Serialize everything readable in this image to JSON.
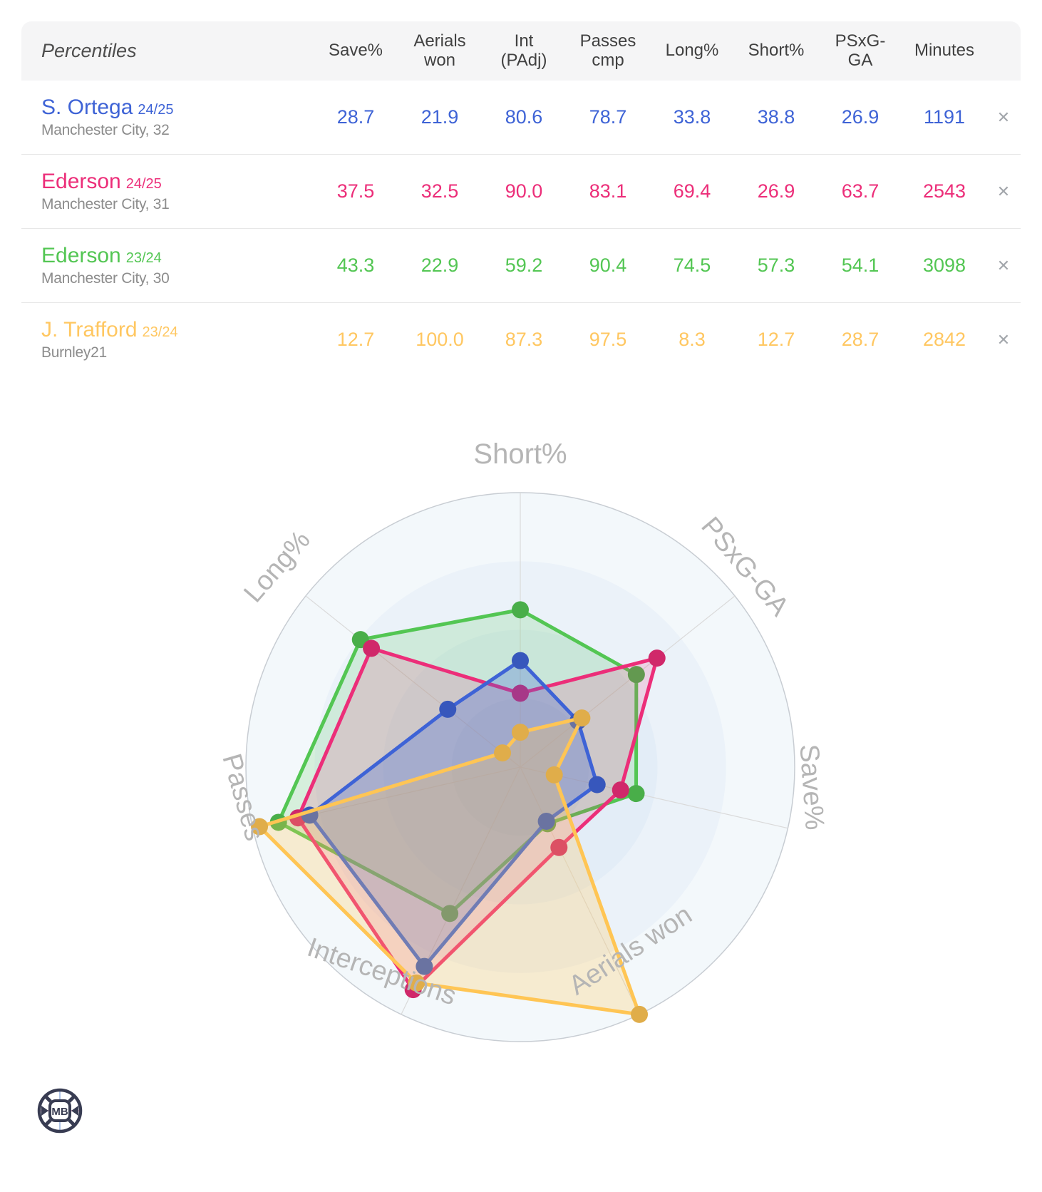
{
  "table": {
    "title": "Percentiles",
    "columns": [
      "Save%",
      "Aerials\nwon",
      "Int\n(PAdj)",
      "Passes\ncmp",
      "Long%",
      "Short%",
      "PSxG-\nGA",
      "Minutes"
    ],
    "remove_label": "✕",
    "rows": [
      {
        "name": "S. Ortega",
        "season": "24/25",
        "club": "Manchester City, 32",
        "color": "#3E63D6",
        "values": [
          "28.7",
          "21.9",
          "80.6",
          "78.7",
          "33.8",
          "38.8",
          "26.9",
          "1191"
        ]
      },
      {
        "name": "Ederson",
        "season": "24/25",
        "club": "Manchester City, 31",
        "color": "#EC2E79",
        "values": [
          "37.5",
          "32.5",
          "90.0",
          "83.1",
          "69.4",
          "26.9",
          "63.7",
          "2543"
        ]
      },
      {
        "name": "Ederson",
        "season": "23/24",
        "club": "Manchester City, 30",
        "color": "#53C653",
        "values": [
          "43.3",
          "22.9",
          "59.2",
          "90.4",
          "74.5",
          "57.3",
          "54.1",
          "3098"
        ]
      },
      {
        "name": "J. Trafford",
        "season": "23/24",
        "club": "Burnley21",
        "color": "#FFC761",
        "values": [
          "12.7",
          "100.0",
          "87.3",
          "97.5",
          "8.3",
          "12.7",
          "28.7",
          "2842"
        ]
      }
    ]
  },
  "chart_data": {
    "type": "radar",
    "axes": [
      "Short%",
      "PSxG-GA",
      "Save%",
      "Aerials won",
      "Interceptions",
      "Passes",
      "Long%"
    ],
    "scale": {
      "min": 0,
      "max": 100
    },
    "grid": "circular",
    "legend_position": "none",
    "series": [
      {
        "name": "S. Ortega 24/25",
        "color": "#3E63D6",
        "values": [
          38.8,
          26.9,
          28.7,
          21.9,
          80.6,
          78.7,
          33.8
        ]
      },
      {
        "name": "Ederson 24/25",
        "color": "#EC2E79",
        "values": [
          26.9,
          63.7,
          37.5,
          32.5,
          90.0,
          83.1,
          69.4
        ]
      },
      {
        "name": "Ederson 23/24",
        "color": "#53C653",
        "values": [
          57.3,
          54.1,
          43.3,
          22.9,
          59.2,
          90.4,
          74.5
        ]
      },
      {
        "name": "J. Trafford 23/24",
        "color": "#FFC554",
        "values": [
          12.7,
          28.7,
          12.7,
          100.0,
          87.3,
          97.5,
          8.3
        ]
      }
    ]
  },
  "logo": {
    "text": "MB"
  }
}
